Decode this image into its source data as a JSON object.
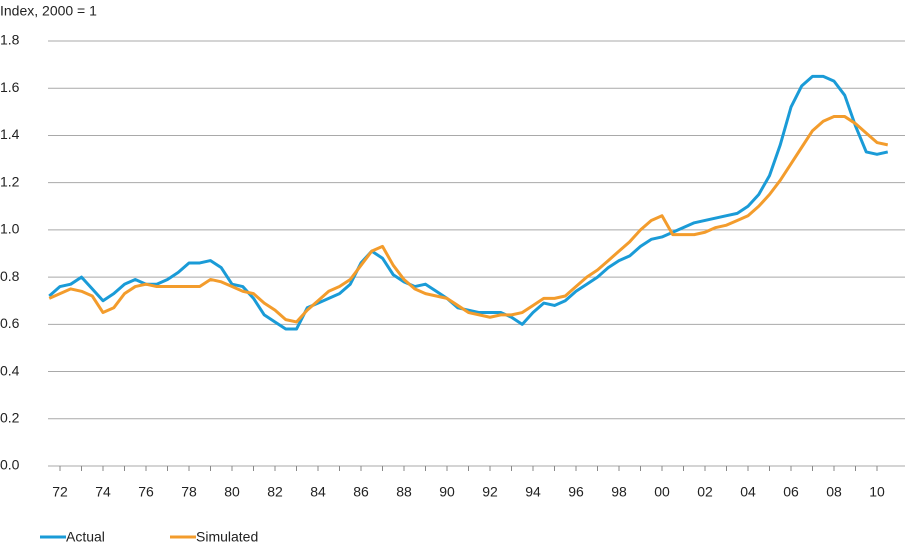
{
  "chart_data": {
    "type": "line",
    "y_axis_label": "Index, 2000 = 1",
    "categories": [
      null,
      "72",
      null,
      null,
      null,
      "74",
      null,
      null,
      null,
      "76",
      null,
      null,
      null,
      "78",
      null,
      null,
      null,
      "80",
      null,
      null,
      null,
      "82",
      null,
      null,
      null,
      "84",
      null,
      null,
      null,
      "86",
      null,
      null,
      null,
      "88",
      null,
      null,
      null,
      "90",
      null,
      null,
      null,
      "92",
      null,
      null,
      null,
      "94",
      null,
      null,
      null,
      "96",
      null,
      null,
      null,
      "98",
      null,
      null,
      null,
      "00",
      null,
      null,
      null,
      "02",
      null,
      null,
      null,
      "04",
      null,
      null,
      null,
      "06",
      null,
      null,
      null,
      "08",
      null,
      null,
      null,
      "10",
      null
    ],
    "series": [
      {
        "name": "Actual",
        "color": "#1a9bd7",
        "values": [
          0.72,
          0.76,
          0.77,
          0.8,
          0.75,
          0.7,
          0.73,
          0.77,
          0.79,
          0.77,
          0.77,
          0.79,
          0.82,
          0.86,
          0.86,
          0.87,
          0.84,
          0.77,
          0.76,
          0.71,
          0.64,
          0.61,
          0.58,
          0.58,
          0.67,
          0.69,
          0.71,
          0.73,
          0.77,
          0.86,
          0.91,
          0.88,
          0.81,
          0.78,
          0.76,
          0.77,
          0.74,
          0.71,
          0.67,
          0.66,
          0.65,
          0.65,
          0.65,
          0.63,
          0.6,
          0.65,
          0.69,
          0.68,
          0.7,
          0.74,
          0.77,
          0.8,
          0.84,
          0.87,
          0.89,
          0.93,
          0.96,
          0.97,
          0.99,
          1.01,
          1.03,
          1.04,
          1.05,
          1.06,
          1.07,
          1.1,
          1.15,
          1.23,
          1.36,
          1.52,
          1.61,
          1.65,
          1.65,
          1.63,
          1.57,
          1.44,
          1.33,
          1.32,
          1.33
        ]
      },
      {
        "name": "Simulated",
        "color": "#f39c2c",
        "values": [
          0.71,
          0.73,
          0.75,
          0.74,
          0.72,
          0.65,
          0.67,
          0.73,
          0.76,
          0.77,
          0.76,
          0.76,
          0.76,
          0.76,
          0.76,
          0.79,
          0.78,
          0.76,
          0.74,
          0.73,
          0.69,
          0.66,
          0.62,
          0.61,
          0.66,
          0.7,
          0.74,
          0.76,
          0.79,
          0.85,
          0.91,
          0.93,
          0.85,
          0.79,
          0.75,
          0.73,
          0.72,
          0.71,
          0.68,
          0.65,
          0.64,
          0.63,
          0.64,
          0.64,
          0.65,
          0.68,
          0.71,
          0.71,
          0.72,
          0.76,
          0.8,
          0.83,
          0.87,
          0.91,
          0.95,
          1.0,
          1.04,
          1.06,
          0.98,
          0.98,
          0.98,
          0.99,
          1.01,
          1.02,
          1.04,
          1.06,
          1.1,
          1.15,
          1.21,
          1.28,
          1.35,
          1.42,
          1.46,
          1.48,
          1.48,
          1.45,
          1.41,
          1.37,
          1.36
        ]
      }
    ],
    "ylim": [
      0,
      1.8
    ],
    "yticks": [
      {
        "value": 0,
        "label": "0.0"
      },
      0.2,
      0.4,
      0.6,
      0.8,
      {
        "value": 1,
        "label": "1.0"
      },
      1.2,
      1.4,
      1.6,
      1.8
    ],
    "grid": true,
    "legend": "bottom-left"
  }
}
